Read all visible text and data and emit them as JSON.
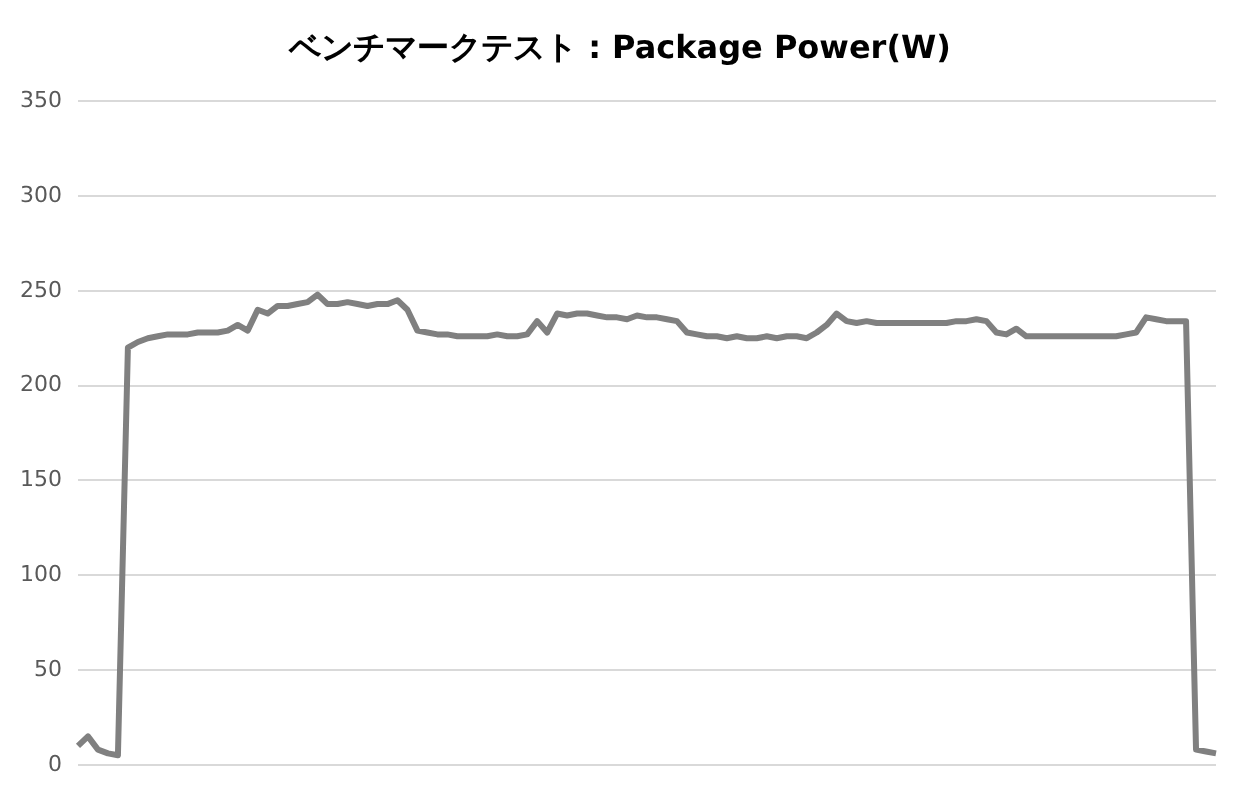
{
  "chart_data": {
    "type": "line",
    "title": "ベンチマークテスト : Package Power(W)",
    "categories": [
      null,
      null,
      null,
      null,
      null,
      null,
      null,
      null,
      null,
      null,
      null,
      null,
      null,
      null,
      null,
      null,
      null,
      null,
      null,
      null,
      null,
      null,
      null,
      null,
      null,
      null,
      null,
      null,
      null,
      null,
      null,
      null,
      null,
      null,
      null,
      null,
      null,
      null,
      null,
      null,
      null,
      null,
      null,
      null,
      null,
      null,
      null,
      null,
      null,
      null,
      null,
      null,
      null,
      null,
      null,
      null,
      null,
      null,
      null,
      null,
      null,
      null,
      null,
      null,
      null,
      null,
      null,
      null,
      null,
      null,
      null,
      null,
      null,
      null,
      null,
      null,
      null,
      null,
      null,
      null,
      null,
      null,
      null,
      null,
      null,
      null,
      null,
      null,
      null,
      null,
      null,
      null,
      null,
      null,
      null,
      null,
      null,
      null,
      null,
      null,
      null,
      null,
      null,
      null,
      null,
      null,
      null,
      null,
      null,
      null,
      null,
      null,
      null,
      null,
      null
    ],
    "series": [
      {
        "color": "#808080",
        "values": [
          10,
          15,
          8,
          6,
          5,
          220,
          223,
          225,
          226,
          227,
          227,
          227,
          228,
          228,
          228,
          229,
          232,
          229,
          240,
          238,
          242,
          242,
          243,
          244,
          248,
          243,
          243,
          244,
          243,
          242,
          243,
          243,
          245,
          240,
          229,
          228,
          227,
          227,
          226,
          226,
          226,
          226,
          227,
          226,
          226,
          227,
          234,
          228,
          238,
          237,
          238,
          238,
          237,
          236,
          236,
          235,
          237,
          236,
          236,
          235,
          234,
          228,
          227,
          226,
          226,
          225,
          226,
          225,
          225,
          226,
          225,
          226,
          226,
          225,
          228,
          232,
          238,
          234,
          233,
          234,
          233,
          233,
          233,
          233,
          233,
          233,
          233,
          233,
          234,
          234,
          235,
          234,
          228,
          227,
          230,
          226,
          226,
          226,
          226,
          226,
          226,
          226,
          226,
          226,
          226,
          227,
          228,
          236,
          235,
          234,
          234,
          234,
          8,
          7,
          6
        ]
      }
    ],
    "ylim": [
      0,
      350
    ],
    "yticks": [
      0,
      50,
      100,
      150,
      200,
      250,
      300,
      350
    ],
    "grid": "y",
    "tick_labels": "y",
    "legend": false,
    "marker": "none",
    "line_style": "solid"
  }
}
